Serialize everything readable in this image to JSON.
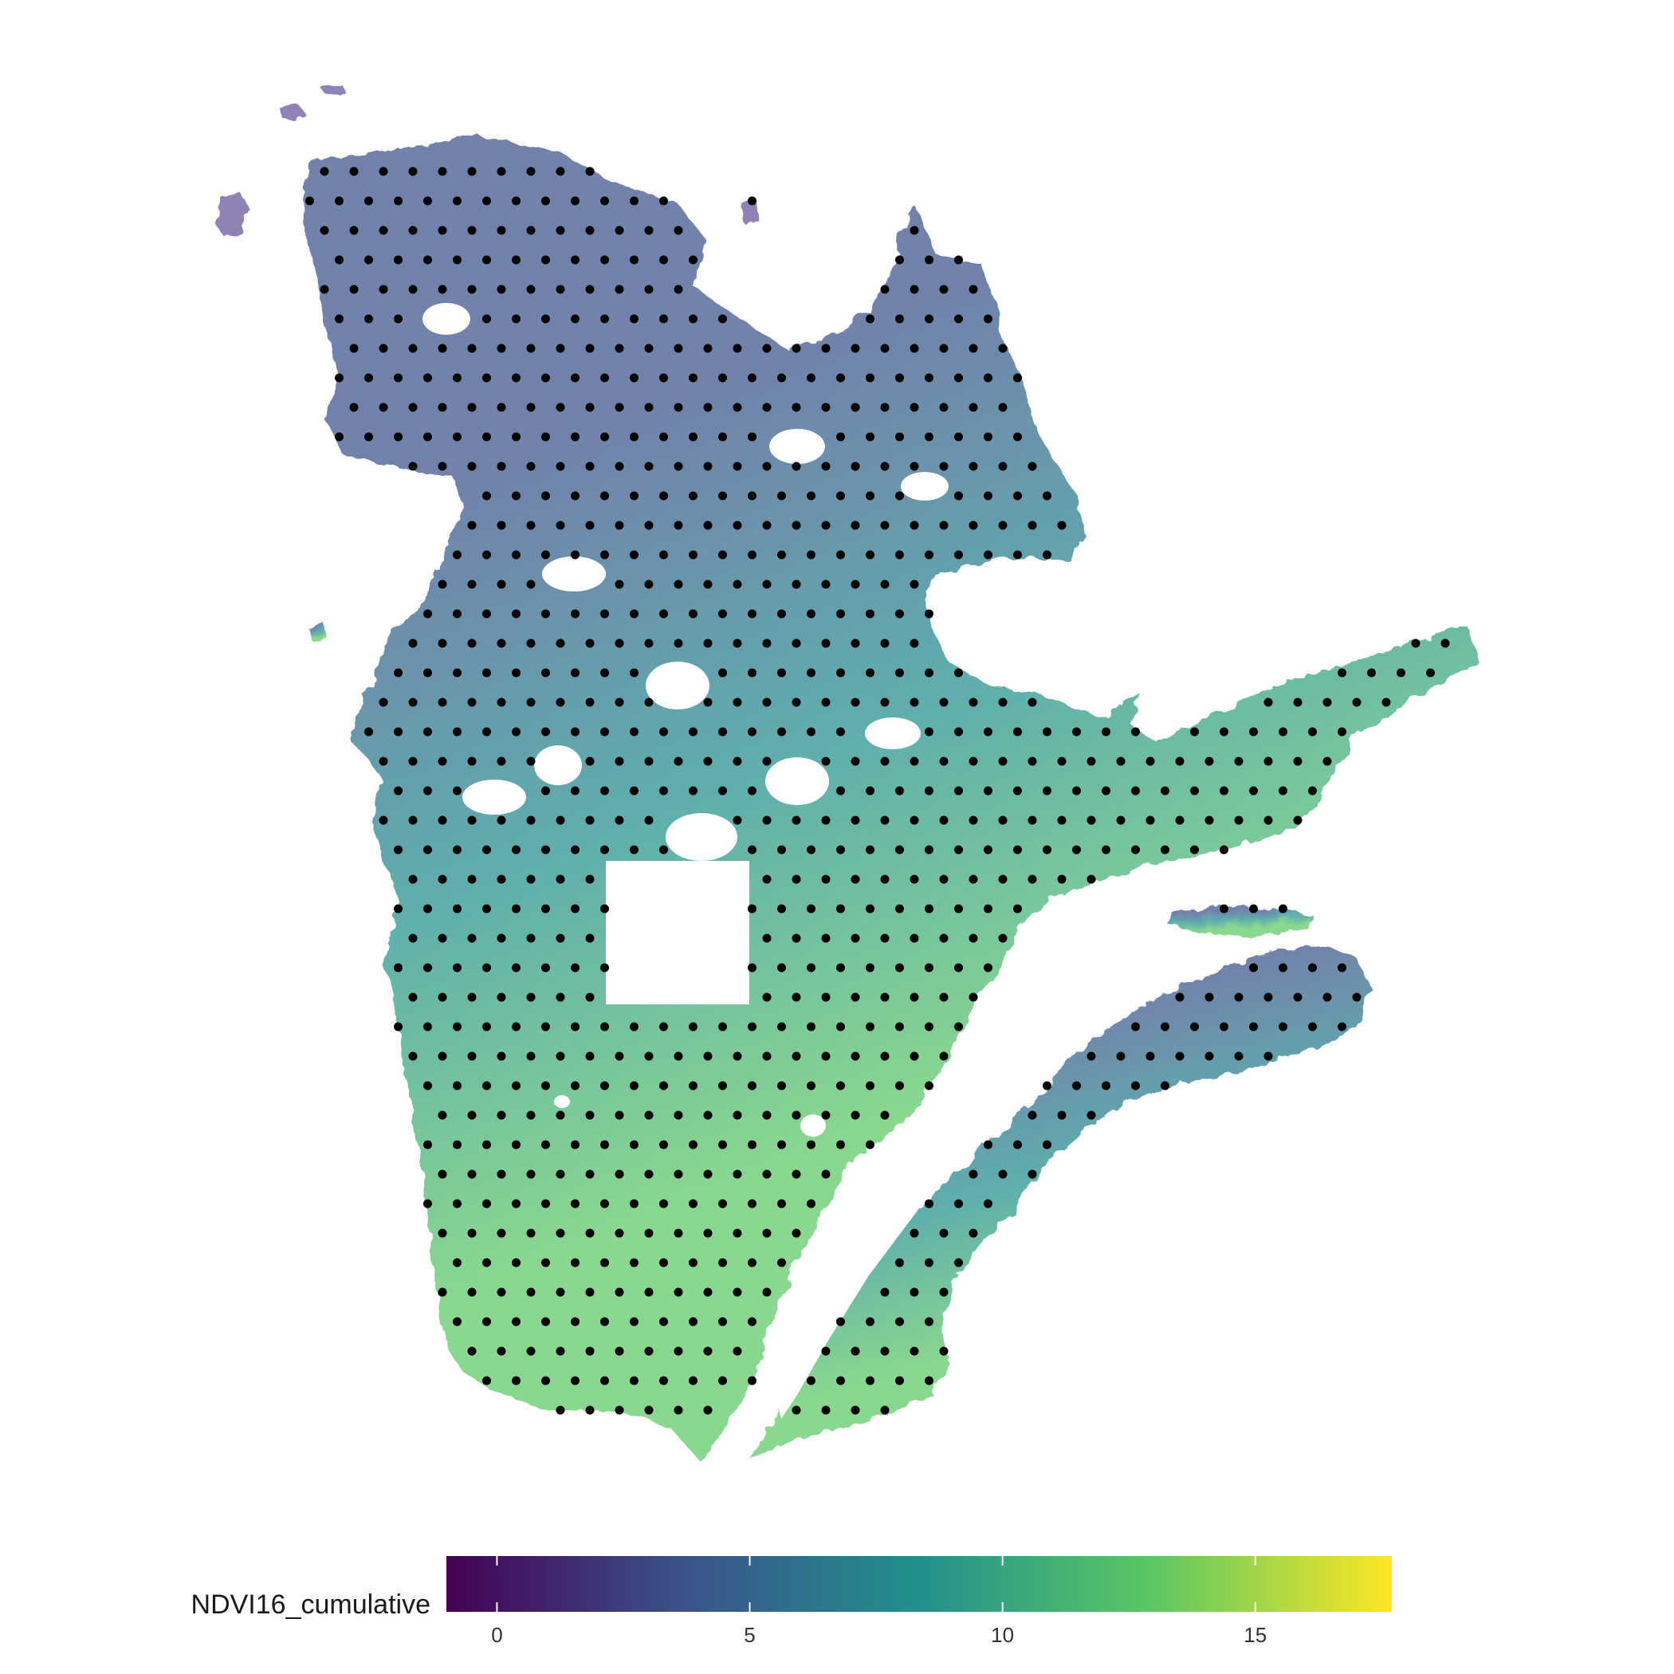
{
  "map": {
    "region": "Quebec",
    "fill_variable": "NDVI16_cumulative",
    "palette": [
      "#440154",
      "#3b528b",
      "#21908c",
      "#5dc863",
      "#fde725"
    ],
    "point_color": "#000000",
    "land_opacity": 0.72
  },
  "legend": {
    "title": "NDVI16_cumulative",
    "min": -1,
    "max": 17.7,
    "ticks": [
      {
        "value": 0,
        "label": "0"
      },
      {
        "value": 5,
        "label": "5"
      },
      {
        "value": 10,
        "label": "10"
      },
      {
        "value": 15,
        "label": "15"
      }
    ],
    "position": "bottom"
  }
}
